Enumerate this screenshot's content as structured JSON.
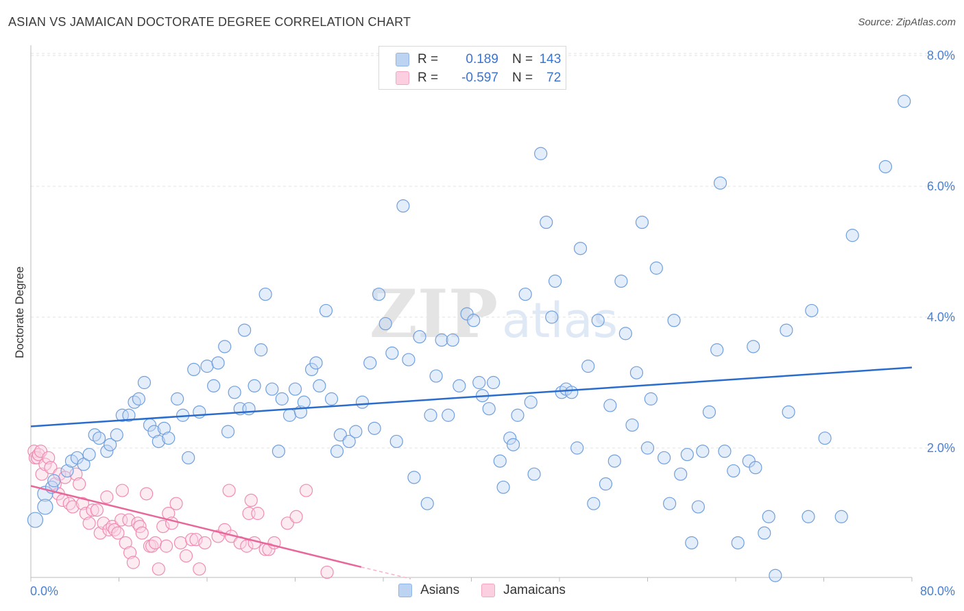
{
  "title": "ASIAN VS JAMAICAN DOCTORATE DEGREE CORRELATION CHART",
  "source": "Source: ZipAtlas.com",
  "chart_data": {
    "type": "scatter",
    "ylabel": "Doctorate Degree",
    "xlim": [
      0,
      80
    ],
    "ylim": [
      0,
      8.5
    ],
    "x_tick_labels": [
      "0.0%",
      "80.0%"
    ],
    "y_ticks": [
      2,
      4,
      6,
      8
    ],
    "y_tick_labels": [
      "2.0%",
      "4.0%",
      "6.0%",
      "8.0%"
    ],
    "grid": true,
    "legend_position": "top-center",
    "watermark": "ZIPatlas",
    "series": [
      {
        "name": "Asians",
        "color": "#8fb5e8",
        "line_color": "#2a6ccc",
        "R": "0.189",
        "N": "143",
        "trend": [
          [
            0,
            2.33
          ],
          [
            80,
            3.23
          ]
        ],
        "points": [
          [
            0.4,
            0.9
          ],
          [
            1.3,
            1.3
          ],
          [
            1.3,
            1.1
          ],
          [
            1.9,
            1.4
          ],
          [
            2.1,
            1.5
          ],
          [
            3.3,
            1.65
          ],
          [
            3.7,
            1.8
          ],
          [
            4.2,
            1.85
          ],
          [
            4.8,
            1.75
          ],
          [
            5.3,
            1.9
          ],
          [
            5.8,
            2.2
          ],
          [
            6.2,
            2.15
          ],
          [
            6.9,
            1.95
          ],
          [
            7.2,
            2.05
          ],
          [
            7.8,
            2.2
          ],
          [
            8.3,
            2.5
          ],
          [
            8.9,
            2.5
          ],
          [
            9.4,
            2.7
          ],
          [
            9.8,
            2.75
          ],
          [
            10.3,
            3.0
          ],
          [
            10.8,
            2.35
          ],
          [
            11.2,
            2.25
          ],
          [
            11.6,
            2.1
          ],
          [
            12.1,
            2.3
          ],
          [
            12.5,
            2.15
          ],
          [
            13.3,
            2.75
          ],
          [
            13.8,
            2.5
          ],
          [
            14.3,
            1.85
          ],
          [
            14.8,
            3.2
          ],
          [
            15.3,
            2.55
          ],
          [
            16.0,
            3.25
          ],
          [
            16.6,
            2.95
          ],
          [
            17.0,
            3.3
          ],
          [
            17.6,
            3.55
          ],
          [
            17.9,
            2.25
          ],
          [
            18.5,
            2.85
          ],
          [
            19.0,
            2.6
          ],
          [
            19.4,
            3.8
          ],
          [
            19.8,
            2.6
          ],
          [
            20.3,
            2.95
          ],
          [
            20.9,
            3.5
          ],
          [
            21.3,
            4.35
          ],
          [
            21.9,
            2.9
          ],
          [
            22.5,
            1.95
          ],
          [
            22.8,
            2.75
          ],
          [
            23.5,
            2.5
          ],
          [
            24.0,
            2.9
          ],
          [
            24.5,
            2.55
          ],
          [
            24.8,
            2.7
          ],
          [
            25.5,
            3.2
          ],
          [
            25.9,
            3.3
          ],
          [
            26.2,
            2.95
          ],
          [
            26.8,
            4.1
          ],
          [
            27.3,
            2.75
          ],
          [
            27.8,
            1.95
          ],
          [
            28.1,
            2.2
          ],
          [
            28.9,
            2.1
          ],
          [
            29.5,
            2.25
          ],
          [
            30.1,
            2.7
          ],
          [
            30.8,
            3.3
          ],
          [
            31.2,
            2.3
          ],
          [
            31.6,
            4.35
          ],
          [
            32.2,
            3.9
          ],
          [
            32.8,
            3.45
          ],
          [
            33.2,
            2.1
          ],
          [
            33.8,
            5.7
          ],
          [
            34.3,
            3.35
          ],
          [
            34.8,
            1.55
          ],
          [
            35.3,
            3.7
          ],
          [
            36.0,
            1.15
          ],
          [
            36.3,
            2.5
          ],
          [
            36.8,
            3.1
          ],
          [
            37.3,
            3.65
          ],
          [
            37.9,
            2.5
          ],
          [
            38.3,
            3.65
          ],
          [
            38.9,
            2.95
          ],
          [
            39.6,
            4.05
          ],
          [
            40.2,
            3.95
          ],
          [
            40.7,
            3.0
          ],
          [
            41.0,
            2.8
          ],
          [
            41.6,
            2.6
          ],
          [
            42.0,
            3.0
          ],
          [
            42.6,
            1.8
          ],
          [
            42.9,
            1.4
          ],
          [
            43.5,
            2.15
          ],
          [
            43.8,
            2.05
          ],
          [
            44.2,
            2.5
          ],
          [
            44.9,
            4.35
          ],
          [
            45.4,
            2.7
          ],
          [
            45.7,
            1.6
          ],
          [
            46.3,
            6.5
          ],
          [
            46.8,
            5.45
          ],
          [
            47.3,
            4.0
          ],
          [
            47.6,
            4.55
          ],
          [
            48.2,
            2.85
          ],
          [
            48.6,
            2.9
          ],
          [
            49.1,
            2.85
          ],
          [
            49.6,
            2.0
          ],
          [
            49.9,
            5.05
          ],
          [
            50.6,
            3.25
          ],
          [
            51.1,
            1.15
          ],
          [
            51.5,
            3.95
          ],
          [
            52.2,
            1.45
          ],
          [
            52.6,
            2.65
          ],
          [
            53.0,
            1.8
          ],
          [
            53.6,
            4.55
          ],
          [
            54.0,
            3.75
          ],
          [
            54.6,
            2.35
          ],
          [
            55.0,
            3.15
          ],
          [
            55.5,
            5.45
          ],
          [
            56.0,
            2.0
          ],
          [
            56.3,
            2.75
          ],
          [
            56.8,
            4.75
          ],
          [
            57.5,
            1.85
          ],
          [
            58.0,
            1.15
          ],
          [
            58.4,
            3.95
          ],
          [
            59.0,
            1.6
          ],
          [
            59.6,
            1.9
          ],
          [
            60.0,
            0.55
          ],
          [
            60.6,
            1.1
          ],
          [
            61.0,
            1.95
          ],
          [
            61.6,
            2.55
          ],
          [
            62.3,
            3.5
          ],
          [
            62.6,
            6.05
          ],
          [
            63.0,
            1.95
          ],
          [
            63.8,
            1.65
          ],
          [
            64.2,
            0.55
          ],
          [
            65.2,
            1.8
          ],
          [
            65.6,
            3.55
          ],
          [
            65.8,
            1.7
          ],
          [
            66.6,
            0.7
          ],
          [
            67.0,
            0.95
          ],
          [
            67.6,
            0.05
          ],
          [
            68.6,
            3.8
          ],
          [
            68.8,
            2.55
          ],
          [
            70.6,
            0.95
          ],
          [
            70.9,
            4.1
          ],
          [
            72.1,
            2.15
          ],
          [
            73.6,
            0.95
          ],
          [
            74.6,
            5.25
          ],
          [
            77.6,
            6.3
          ],
          [
            79.3,
            7.3
          ]
        ]
      },
      {
        "name": "Jamaicans",
        "color": "#f4a7c3",
        "line_color": "#e8679a",
        "R": "-0.597",
        "N": "72",
        "trend": [
          [
            0,
            1.42
          ],
          [
            30,
            0.18
          ]
        ],
        "trend_dashed": [
          [
            30,
            0.18
          ],
          [
            34.5,
            0.0
          ]
        ],
        "points": [
          [
            0.3,
            1.95
          ],
          [
            0.4,
            1.85
          ],
          [
            0.6,
            1.85
          ],
          [
            0.7,
            1.9
          ],
          [
            0.9,
            1.95
          ],
          [
            1.0,
            1.6
          ],
          [
            1.3,
            1.75
          ],
          [
            1.6,
            1.85
          ],
          [
            1.8,
            1.7
          ],
          [
            2.2,
            1.45
          ],
          [
            2.5,
            1.3
          ],
          [
            2.6,
            1.6
          ],
          [
            2.9,
            1.2
          ],
          [
            3.1,
            1.55
          ],
          [
            3.5,
            1.15
          ],
          [
            3.8,
            1.1
          ],
          [
            4.1,
            1.6
          ],
          [
            4.4,
            1.45
          ],
          [
            4.7,
            1.15
          ],
          [
            5.0,
            1.0
          ],
          [
            5.3,
            0.85
          ],
          [
            5.6,
            1.05
          ],
          [
            6.0,
            1.05
          ],
          [
            6.3,
            0.7
          ],
          [
            6.6,
            0.85
          ],
          [
            6.9,
            1.25
          ],
          [
            7.1,
            0.75
          ],
          [
            7.4,
            0.8
          ],
          [
            7.6,
            0.75
          ],
          [
            7.9,
            0.7
          ],
          [
            8.2,
            0.9
          ],
          [
            8.3,
            1.35
          ],
          [
            8.6,
            0.55
          ],
          [
            8.9,
            0.9
          ],
          [
            9.0,
            0.4
          ],
          [
            9.3,
            0.25
          ],
          [
            9.7,
            0.85
          ],
          [
            9.9,
            0.8
          ],
          [
            10.1,
            0.7
          ],
          [
            10.5,
            1.3
          ],
          [
            10.8,
            0.5
          ],
          [
            11.0,
            0.5
          ],
          [
            11.3,
            0.55
          ],
          [
            11.6,
            0.15
          ],
          [
            12.0,
            0.8
          ],
          [
            12.3,
            0.5
          ],
          [
            12.5,
            1.0
          ],
          [
            12.8,
            0.85
          ],
          [
            13.2,
            1.15
          ],
          [
            13.6,
            0.55
          ],
          [
            14.1,
            0.35
          ],
          [
            14.6,
            0.6
          ],
          [
            15.0,
            0.6
          ],
          [
            15.3,
            0.15
          ],
          [
            15.8,
            0.55
          ],
          [
            17.0,
            0.65
          ],
          [
            17.6,
            0.75
          ],
          [
            18.0,
            1.35
          ],
          [
            18.2,
            0.65
          ],
          [
            19.0,
            0.55
          ],
          [
            19.6,
            0.5
          ],
          [
            19.8,
            1.0
          ],
          [
            20.0,
            1.2
          ],
          [
            20.3,
            0.55
          ],
          [
            20.6,
            1.0
          ],
          [
            21.3,
            0.45
          ],
          [
            21.6,
            0.45
          ],
          [
            22.1,
            0.55
          ],
          [
            23.3,
            0.85
          ],
          [
            24.1,
            0.95
          ],
          [
            25.0,
            1.35
          ],
          [
            26.9,
            0.1
          ]
        ]
      }
    ]
  }
}
